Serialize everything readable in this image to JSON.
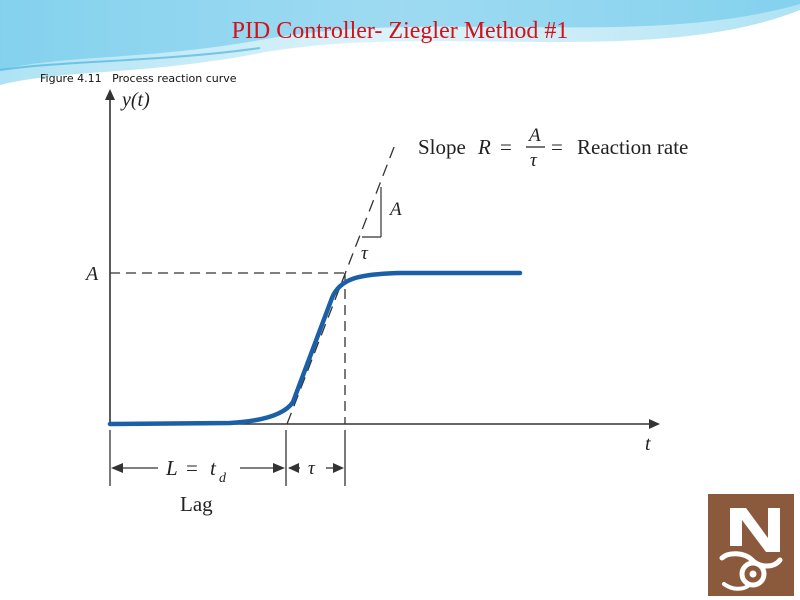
{
  "slide": {
    "title": "PID Controller- Ziegler Method #1",
    "caption": "Figure 4.11   Process reaction curve"
  },
  "diagram": {
    "y_axis_label": "y(t)",
    "x_axis_label": "t",
    "level_label": "A",
    "slope_text_prefix": "Slope",
    "slope_var": "R",
    "slope_equals": "=",
    "slope_num": "A",
    "slope_den": "τ",
    "slope_equals2": "=",
    "slope_text_suffix": "Reaction rate",
    "triangle_rise": "A",
    "triangle_run": "τ",
    "lag_label_L": "L",
    "lag_label_eq": "=",
    "lag_label_t": "t",
    "lag_label_sub": "d",
    "lag_word": "Lag",
    "tau_label": "τ"
  },
  "colors": {
    "title": "#d4101a",
    "curve": "#1a5fa8",
    "header_wave": "#5bc5e8",
    "logo": "#8b5a3c"
  },
  "icons": {
    "logo": "institution-logo"
  }
}
